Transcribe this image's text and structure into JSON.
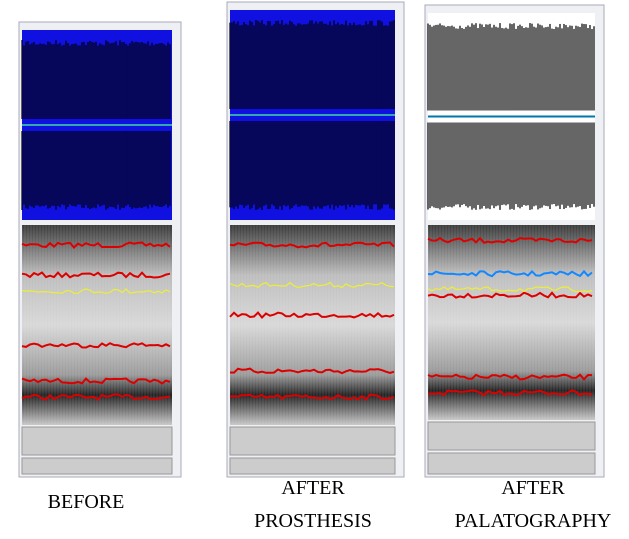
{
  "captions": [
    {
      "lines": [
        "BEFORE"
      ]
    },
    {
      "lines": [
        "AFTER",
        "PROSTHESIS"
      ]
    },
    {
      "lines": [
        "AFTER",
        "PALATOGRAPHY"
      ]
    }
  ]
}
